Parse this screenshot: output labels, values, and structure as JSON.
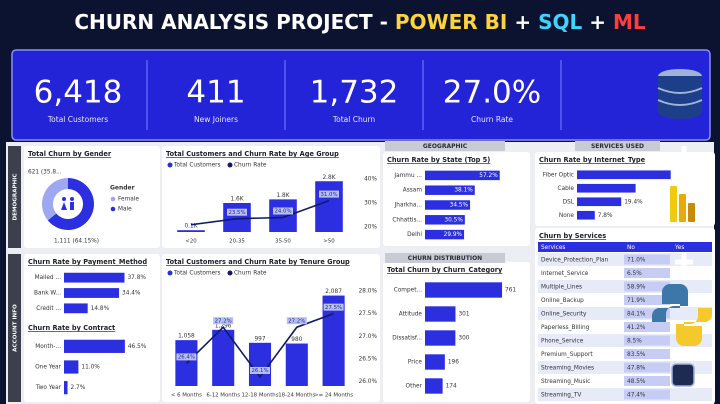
{
  "header": {
    "title_parts": [
      {
        "text": "CHURN ANALYSIS PROJECT -",
        "color": "#ffffff"
      },
      {
        "text": "POWER BI",
        "color": "#ffd23f"
      },
      {
        "text": "+",
        "color": "#ffffff"
      },
      {
        "text": "SQL",
        "color": "#3fd4ff"
      },
      {
        "text": "+",
        "color": "#ffffff"
      },
      {
        "text": "ML",
        "color": "#ff3d3d"
      }
    ]
  },
  "kpis": [
    {
      "value": "6,418",
      "label": "Total Customers"
    },
    {
      "value": "411",
      "label": "New Joiners"
    },
    {
      "value": "1,732",
      "label": "Total Churn"
    },
    {
      "value": "27.0%",
      "label": "Churn Rate"
    }
  ],
  "sections": {
    "demographic": "DEMOGRAPHIC",
    "account_info": "ACCOUNT INFO",
    "geographic": "GEOGRAPHIC",
    "churn_distribution": "CHURN DISTRIBUTION",
    "services_used": "SERVICES USED"
  },
  "chart_data": [
    {
      "type": "pie",
      "title": "Total Churn by Gender",
      "legend_title": "Gender",
      "categories": [
        "Female",
        "Male"
      ],
      "values": [
        621,
        1111
      ],
      "value_labels": [
        "621 (35.8...",
        "1,111 (64.15%)"
      ],
      "colors": [
        "#9ea8f2",
        "#2b2fe0"
      ]
    },
    {
      "type": "combo",
      "title": "Total Customers and Churn Rate by Age Group",
      "categories": [
        "<20",
        "20-35",
        "35-50",
        ">50"
      ],
      "series": [
        {
          "name": "Total Customers",
          "type": "bar",
          "color": "#2b2fe0",
          "values": [
            100,
            1600,
            1800,
            2800
          ],
          "value_labels": [
            "0.1K",
            "1.6K",
            "1.8K",
            "2.8K"
          ]
        },
        {
          "name": "Churn Rate",
          "type": "line",
          "axis": "y2",
          "color": "#101a66",
          "values": [
            21.0,
            23.5,
            24.0,
            31.0
          ],
          "value_labels": [
            null,
            "23.5%",
            "24.0%",
            "31.0%"
          ]
        }
      ],
      "ylim": [
        0,
        3200
      ],
      "y2lim": [
        18,
        42
      ],
      "y2ticks": [
        {
          "value": 40,
          "label": "40%"
        },
        {
          "value": 30,
          "label": "30%"
        },
        {
          "value": 20,
          "label": "20%"
        }
      ]
    },
    {
      "type": "bar",
      "title": "Churn Rate by Payment_Method",
      "orientation": "horizontal",
      "categories": [
        "Mailed ...",
        "Bank W...",
        "Credit ..."
      ],
      "values": [
        37.8,
        34.4,
        14.8
      ],
      "value_labels": [
        "37.8%",
        "34.4%",
        "14.8%"
      ],
      "color": "#2b2fe0",
      "xlim": [
        0,
        45
      ],
      "label_inside": false
    },
    {
      "type": "bar",
      "title": "Churn Rate by Contract",
      "orientation": "horizontal",
      "categories": [
        "Month-...",
        "One Year",
        "Two Year"
      ],
      "values": [
        46.5,
        11.0,
        2.7
      ],
      "value_labels": [
        "46.5%",
        "11.0%",
        "2.7%"
      ],
      "color": "#2b2fe0",
      "xlim": [
        0,
        55
      ],
      "label_inside": false
    },
    {
      "type": "combo",
      "title": "Total Customers and Churn Rate by Tenure Group",
      "categories": [
        "< 6 Months",
        "6-12 Months",
        "12-18 Months",
        "18-24 Months",
        ">= 24 Months"
      ],
      "series": [
        {
          "name": "Total Customers",
          "type": "bar",
          "color": "#2b2fe0",
          "values": [
            1058,
            1296,
            997,
            980,
            2087
          ],
          "value_labels": [
            "1,058",
            "1,296",
            "997",
            "980",
            "2,087"
          ]
        },
        {
          "name": "Churn Rate",
          "type": "line",
          "axis": "y2",
          "color": "#101a66",
          "values": [
            26.4,
            27.2,
            26.1,
            27.2,
            27.5
          ],
          "value_labels": [
            "26.4%",
            "27.2%",
            "26.1%",
            "27.2%",
            "27.5%"
          ]
        }
      ],
      "ylim": [
        0,
        2400
      ],
      "y2lim": [
        25.9,
        28.2
      ],
      "y2ticks": [
        {
          "value": 28.0,
          "label": "28.0%"
        },
        {
          "value": 27.5,
          "label": "27.5%"
        },
        {
          "value": 27.0,
          "label": "27.0%"
        },
        {
          "value": 26.5,
          "label": "26.5%"
        },
        {
          "value": 26.0,
          "label": "26.0%"
        }
      ]
    },
    {
      "type": "bar",
      "title": "Churn Rate by State (Top 5)",
      "orientation": "horizontal",
      "categories": [
        "Jammu ...",
        "Assam",
        "Jharkha...",
        "Chhattis...",
        "Delhi"
      ],
      "values": [
        57.2,
        38.1,
        34.5,
        30.5,
        29.9
      ],
      "value_labels": [
        "57.2%",
        "38.1%",
        "34.5%",
        "30.5%",
        "29.9%"
      ],
      "color": "#2b2fe0",
      "xlim": [
        0,
        62
      ],
      "label_inside": true
    },
    {
      "type": "bar",
      "title": "Total Churn by Churn_Category",
      "orientation": "horizontal",
      "categories": [
        "Compet...",
        "Attitude",
        "Dissatisf...",
        "Price",
        "Other"
      ],
      "values": [
        761,
        301,
        300,
        196,
        174
      ],
      "value_labels": [
        "761",
        "301",
        "300",
        "196",
        "174"
      ],
      "color": "#2b2fe0",
      "xlim": [
        0,
        800
      ],
      "label_inside": false
    },
    {
      "type": "bar",
      "title": "Churn Rate by Internet_Type",
      "orientation": "horizontal",
      "categories": [
        "Fiber Optic",
        "Cable",
        "DSL",
        "None"
      ],
      "values": [
        41.1,
        25.7,
        19.4,
        7.8
      ],
      "value_labels": [
        null,
        null,
        "19.4%",
        "7.8%"
      ],
      "color": "#2b2fe0",
      "xlim": [
        0,
        50
      ],
      "label_inside": false
    }
  ],
  "services_table": {
    "title": "Churn by Services",
    "columns": [
      "Services",
      "No",
      "Yes"
    ],
    "rows": [
      [
        "Device_Protection_Plan",
        "71.0%"
      ],
      [
        "Internet_Service",
        "6.5%"
      ],
      [
        "Multiple_Lines",
        "58.9%"
      ],
      [
        "Online_Backup",
        "71.9%"
      ],
      [
        "Online_Security",
        "84.1%"
      ],
      [
        "Paperless_Billing",
        "41.2%"
      ],
      [
        "Phone_Service",
        "8.5%"
      ],
      [
        "Premium_Support",
        "83.5%"
      ],
      [
        "Streaming_Movies",
        "47.8%"
      ],
      [
        "Streaming_Music",
        "48.5%"
      ],
      [
        "Streaming_TV",
        "47.4%"
      ]
    ]
  }
}
